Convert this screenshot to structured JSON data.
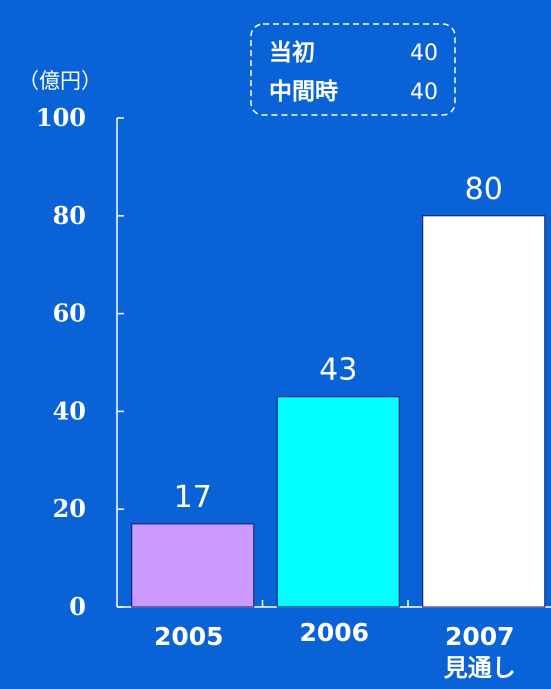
{
  "chart_data": {
    "type": "bar",
    "unit": "（億円）",
    "categories": [
      "2005",
      "2006",
      "2007"
    ],
    "category_sublabels": [
      "",
      "",
      "見通し"
    ],
    "values": [
      17,
      43,
      80
    ],
    "data_labels": [
      "17",
      "43",
      "80"
    ],
    "bar_colors": [
      "#cc99ff",
      "#00ffff",
      "#ffffff"
    ],
    "ylim": [
      0,
      100
    ],
    "yticks": [
      0,
      20,
      40,
      60,
      80,
      100
    ],
    "ytick_labels": [
      "0",
      "20",
      "40",
      "60",
      "80",
      "100"
    ],
    "grid": false,
    "annotation": {
      "rows": [
        {
          "label": "当初",
          "value": "40"
        },
        {
          "label": "中間時",
          "value": "40"
        }
      ]
    }
  },
  "colors": {
    "background": "#0a63d6",
    "axis": "#ffffff"
  }
}
